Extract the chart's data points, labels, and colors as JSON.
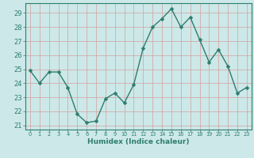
{
  "x": [
    0,
    1,
    2,
    3,
    4,
    5,
    6,
    7,
    8,
    9,
    10,
    11,
    12,
    13,
    14,
    15,
    16,
    17,
    18,
    19,
    20,
    21,
    22,
    23
  ],
  "y": [
    24.9,
    24.0,
    24.8,
    24.8,
    23.7,
    21.8,
    21.2,
    21.3,
    22.9,
    23.3,
    22.6,
    23.9,
    26.5,
    28.0,
    28.6,
    29.3,
    28.0,
    28.7,
    27.1,
    25.5,
    26.4,
    25.2,
    23.3,
    23.7
  ],
  "xlabel": "Humidex (Indice chaleur)",
  "ylim": [
    20.7,
    29.7
  ],
  "xlim": [
    -0.5,
    23.5
  ],
  "yticks": [
    21,
    22,
    23,
    24,
    25,
    26,
    27,
    28,
    29
  ],
  "xticks": [
    0,
    1,
    2,
    3,
    4,
    5,
    6,
    7,
    8,
    9,
    10,
    11,
    12,
    13,
    14,
    15,
    16,
    17,
    18,
    19,
    20,
    21,
    22,
    23
  ],
  "line_color": "#2e7d6e",
  "marker_color": "#2e7d6e",
  "bg_color": "#cce8e8",
  "grid_color_major": "#d4a0a0",
  "grid_color_minor": "#d4a0a0",
  "axis_color": "#2e7d6e",
  "tick_color": "#2e7d6e",
  "label_color": "#2e7d6e",
  "line_width": 1.0,
  "marker_size": 2.5,
  "xlabel_fontsize": 6.5,
  "ytick_fontsize": 6,
  "xtick_fontsize": 4.8
}
